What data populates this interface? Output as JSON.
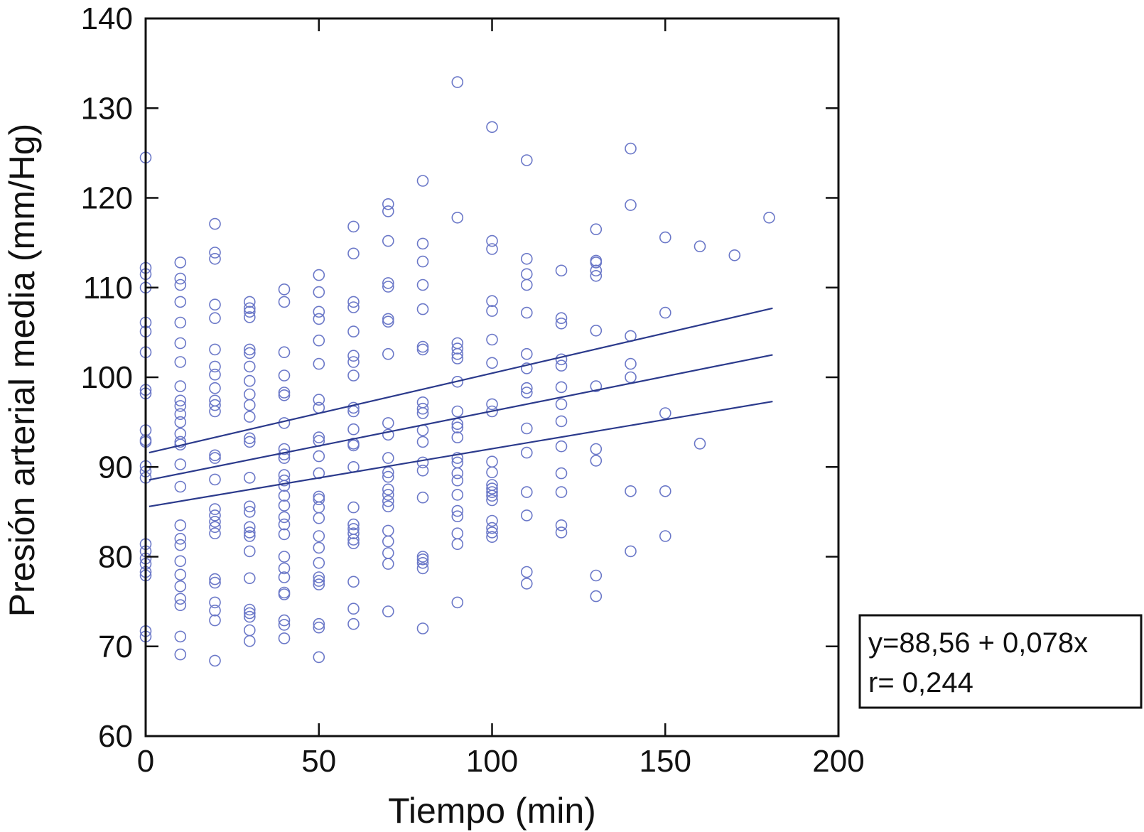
{
  "chart_data": {
    "type": "scatter",
    "xlabel": "Tiempo (min)",
    "ylabel": "Presión arterial media (mm/Hg)",
    "xlim": [
      0,
      200
    ],
    "ylim": [
      60,
      140
    ],
    "x_ticks": [
      0,
      50,
      100,
      150,
      200
    ],
    "y_ticks": [
      60,
      70,
      80,
      90,
      100,
      110,
      120,
      130,
      140
    ],
    "x_tick_labels": [
      "0",
      "50",
      "100",
      "150",
      "200"
    ],
    "y_tick_labels": [
      "60",
      "70",
      "80",
      "90",
      "100",
      "110",
      "120",
      "130",
      "140"
    ],
    "grid": false,
    "colors": {
      "points": "#6b78c8",
      "lines": "#2b3a8c",
      "axes": "#111111"
    },
    "points": [
      [
        0,
        124.5
      ],
      [
        0,
        112.2
      ],
      [
        0,
        111.5
      ],
      [
        0,
        110
      ],
      [
        0,
        106.1
      ],
      [
        0,
        105.1
      ],
      [
        0,
        102.8
      ],
      [
        0,
        98.6
      ],
      [
        0,
        98.2
      ],
      [
        0,
        94.1
      ],
      [
        0,
        93
      ],
      [
        0,
        92.8
      ],
      [
        0,
        90.1
      ],
      [
        0,
        89.5
      ],
      [
        0,
        88.8
      ],
      [
        0,
        81.4
      ],
      [
        0,
        80.6
      ],
      [
        0,
        79.8
      ],
      [
        0,
        79.2
      ],
      [
        0,
        78.3
      ],
      [
        0,
        77.9
      ],
      [
        0,
        71.7
      ],
      [
        0,
        71.1
      ],
      [
        10,
        112.8
      ],
      [
        10,
        111
      ],
      [
        10,
        110.3
      ],
      [
        10,
        108.4
      ],
      [
        10,
        106.1
      ],
      [
        10,
        103.8
      ],
      [
        10,
        101.7
      ],
      [
        10,
        99
      ],
      [
        10,
        97.4
      ],
      [
        10,
        96.8
      ],
      [
        10,
        95.9
      ],
      [
        10,
        95
      ],
      [
        10,
        93.7
      ],
      [
        10,
        92.8
      ],
      [
        10,
        92.5
      ],
      [
        10,
        90.3
      ],
      [
        10,
        87.8
      ],
      [
        10,
        83.5
      ],
      [
        10,
        82
      ],
      [
        10,
        81.3
      ],
      [
        10,
        79.5
      ],
      [
        10,
        78
      ],
      [
        10,
        76.7
      ],
      [
        10,
        75.3
      ],
      [
        10,
        74.6
      ],
      [
        10,
        71.1
      ],
      [
        10,
        69.1
      ],
      [
        20,
        117.1
      ],
      [
        20,
        113.9
      ],
      [
        20,
        113.2
      ],
      [
        20,
        108.1
      ],
      [
        20,
        106.6
      ],
      [
        20,
        103.1
      ],
      [
        20,
        101.2
      ],
      [
        20,
        100.3
      ],
      [
        20,
        98.8
      ],
      [
        20,
        97.4
      ],
      [
        20,
        96.9
      ],
      [
        20,
        96.2
      ],
      [
        20,
        91.3
      ],
      [
        20,
        91
      ],
      [
        20,
        88.6
      ],
      [
        20,
        85.3
      ],
      [
        20,
        84.6
      ],
      [
        20,
        83.9
      ],
      [
        20,
        83.3
      ],
      [
        20,
        82.6
      ],
      [
        20,
        77.5
      ],
      [
        20,
        77.1
      ],
      [
        20,
        74.9
      ],
      [
        20,
        74
      ],
      [
        20,
        72.9
      ],
      [
        20,
        68.4
      ],
      [
        30,
        108.4
      ],
      [
        30,
        107.7
      ],
      [
        30,
        107.3
      ],
      [
        30,
        106.7
      ],
      [
        30,
        103.1
      ],
      [
        30,
        102.7
      ],
      [
        30,
        101.2
      ],
      [
        30,
        99.6
      ],
      [
        30,
        98.1
      ],
      [
        30,
        96.9
      ],
      [
        30,
        95.6
      ],
      [
        30,
        93.2
      ],
      [
        30,
        92.8
      ],
      [
        30,
        88.8
      ],
      [
        30,
        85.6
      ],
      [
        30,
        85
      ],
      [
        30,
        83.3
      ],
      [
        30,
        82.7
      ],
      [
        30,
        82.3
      ],
      [
        30,
        80.6
      ],
      [
        30,
        77.6
      ],
      [
        30,
        74.1
      ],
      [
        30,
        73.7
      ],
      [
        30,
        73.3
      ],
      [
        30,
        71.8
      ],
      [
        30,
        70.6
      ],
      [
        40,
        109.8
      ],
      [
        40,
        108.4
      ],
      [
        40,
        102.8
      ],
      [
        40,
        100.2
      ],
      [
        40,
        98.3
      ],
      [
        40,
        98
      ],
      [
        40,
        94.9
      ],
      [
        40,
        92
      ],
      [
        40,
        91.4
      ],
      [
        40,
        91
      ],
      [
        40,
        89.1
      ],
      [
        40,
        88.5
      ],
      [
        40,
        87.9
      ],
      [
        40,
        86.8
      ],
      [
        40,
        85.7
      ],
      [
        40,
        84.4
      ],
      [
        40,
        83.6
      ],
      [
        40,
        82.5
      ],
      [
        40,
        80
      ],
      [
        40,
        78.7
      ],
      [
        40,
        77.7
      ],
      [
        40,
        76
      ],
      [
        40,
        75.8
      ],
      [
        40,
        72.9
      ],
      [
        40,
        72.4
      ],
      [
        40,
        70.9
      ],
      [
        50,
        111.4
      ],
      [
        50,
        109.5
      ],
      [
        50,
        107.3
      ],
      [
        50,
        106.5
      ],
      [
        50,
        104.1
      ],
      [
        50,
        101.5
      ],
      [
        50,
        97.5
      ],
      [
        50,
        96.6
      ],
      [
        50,
        93.3
      ],
      [
        50,
        92.9
      ],
      [
        50,
        91.2
      ],
      [
        50,
        89.3
      ],
      [
        50,
        86.7
      ],
      [
        50,
        86.4
      ],
      [
        50,
        85.5
      ],
      [
        50,
        84.3
      ],
      [
        50,
        82.3
      ],
      [
        50,
        81
      ],
      [
        50,
        79.3
      ],
      [
        50,
        77.7
      ],
      [
        50,
        77.3
      ],
      [
        50,
        76.9
      ],
      [
        50,
        72.5
      ],
      [
        50,
        72.1
      ],
      [
        50,
        68.8
      ],
      [
        60,
        116.8
      ],
      [
        60,
        113.8
      ],
      [
        60,
        108.4
      ],
      [
        60,
        107.8
      ],
      [
        60,
        105.1
      ],
      [
        60,
        102.4
      ],
      [
        60,
        101.7
      ],
      [
        60,
        100.2
      ],
      [
        60,
        96.6
      ],
      [
        60,
        96.2
      ],
      [
        60,
        94.2
      ],
      [
        60,
        92.6
      ],
      [
        60,
        92.4
      ],
      [
        60,
        90
      ],
      [
        60,
        85.5
      ],
      [
        60,
        83.6
      ],
      [
        60,
        83.1
      ],
      [
        60,
        82.6
      ],
      [
        60,
        81.9
      ],
      [
        60,
        81.5
      ],
      [
        60,
        77.2
      ],
      [
        60,
        74.2
      ],
      [
        60,
        72.5
      ],
      [
        70,
        119.3
      ],
      [
        70,
        118.5
      ],
      [
        70,
        115.2
      ],
      [
        70,
        110.5
      ],
      [
        70,
        110.1
      ],
      [
        70,
        106.5
      ],
      [
        70,
        106.2
      ],
      [
        70,
        102.6
      ],
      [
        70,
        94.9
      ],
      [
        70,
        93.6
      ],
      [
        70,
        91
      ],
      [
        70,
        89.4
      ],
      [
        70,
        88.9
      ],
      [
        70,
        87.5
      ],
      [
        70,
        86.9
      ],
      [
        70,
        86.2
      ],
      [
        70,
        85.6
      ],
      [
        70,
        82.9
      ],
      [
        70,
        81.7
      ],
      [
        70,
        80.4
      ],
      [
        70,
        79.2
      ],
      [
        70,
        73.9
      ],
      [
        80,
        121.9
      ],
      [
        80,
        114.9
      ],
      [
        80,
        112.9
      ],
      [
        80,
        110.3
      ],
      [
        80,
        107.6
      ],
      [
        80,
        103.4
      ],
      [
        80,
        103.1
      ],
      [
        80,
        97.2
      ],
      [
        80,
        96.5
      ],
      [
        80,
        96
      ],
      [
        80,
        94.1
      ],
      [
        80,
        92.8
      ],
      [
        80,
        90.5
      ],
      [
        80,
        89.6
      ],
      [
        80,
        86.6
      ],
      [
        80,
        80
      ],
      [
        80,
        79.7
      ],
      [
        80,
        79.3
      ],
      [
        80,
        78.7
      ],
      [
        80,
        72
      ],
      [
        90,
        132.9
      ],
      [
        90,
        117.8
      ],
      [
        90,
        103.8
      ],
      [
        90,
        103.2
      ],
      [
        90,
        102.6
      ],
      [
        90,
        102.1
      ],
      [
        90,
        99.5
      ],
      [
        90,
        96.2
      ],
      [
        90,
        94.8
      ],
      [
        90,
        94.4
      ],
      [
        90,
        93.3
      ],
      [
        90,
        91
      ],
      [
        90,
        90.5
      ],
      [
        90,
        89.3
      ],
      [
        90,
        88.5
      ],
      [
        90,
        86.9
      ],
      [
        90,
        85.1
      ],
      [
        90,
        84.5
      ],
      [
        90,
        82.6
      ],
      [
        90,
        81.4
      ],
      [
        90,
        74.9
      ],
      [
        100,
        127.9
      ],
      [
        100,
        115.2
      ],
      [
        100,
        114.3
      ],
      [
        100,
        108.5
      ],
      [
        100,
        107.4
      ],
      [
        100,
        104.2
      ],
      [
        100,
        101.6
      ],
      [
        100,
        97
      ],
      [
        100,
        96.2
      ],
      [
        100,
        90.6
      ],
      [
        100,
        89.4
      ],
      [
        100,
        88
      ],
      [
        100,
        87.6
      ],
      [
        100,
        87.2
      ],
      [
        100,
        86.8
      ],
      [
        100,
        86.3
      ],
      [
        100,
        84
      ],
      [
        100,
        83.2
      ],
      [
        100,
        82.7
      ],
      [
        100,
        82.2
      ],
      [
        110,
        124.2
      ],
      [
        110,
        113.2
      ],
      [
        110,
        111.5
      ],
      [
        110,
        110.3
      ],
      [
        110,
        107.2
      ],
      [
        110,
        102.6
      ],
      [
        110,
        101
      ],
      [
        110,
        98.8
      ],
      [
        110,
        98.3
      ],
      [
        110,
        94.3
      ],
      [
        110,
        91.6
      ],
      [
        110,
        87.2
      ],
      [
        110,
        84.6
      ],
      [
        110,
        78.3
      ],
      [
        110,
        77
      ],
      [
        120,
        111.9
      ],
      [
        120,
        106.6
      ],
      [
        120,
        106
      ],
      [
        120,
        102
      ],
      [
        120,
        101.3
      ],
      [
        120,
        98.9
      ],
      [
        120,
        97
      ],
      [
        120,
        95.1
      ],
      [
        120,
        92.3
      ],
      [
        120,
        89.3
      ],
      [
        120,
        87.2
      ],
      [
        120,
        83.5
      ],
      [
        120,
        82.7
      ],
      [
        130,
        116.5
      ],
      [
        130,
        113
      ],
      [
        130,
        112.8
      ],
      [
        130,
        111.9
      ],
      [
        130,
        111.3
      ],
      [
        130,
        105.2
      ],
      [
        130,
        99
      ],
      [
        130,
        92
      ],
      [
        130,
        90.7
      ],
      [
        130,
        77.9
      ],
      [
        130,
        75.6
      ],
      [
        140,
        125.5
      ],
      [
        140,
        119.2
      ],
      [
        140,
        104.6
      ],
      [
        140,
        101.5
      ],
      [
        140,
        100
      ],
      [
        140,
        87.3
      ],
      [
        140,
        80.6
      ],
      [
        150,
        115.6
      ],
      [
        150,
        107.2
      ],
      [
        150,
        96
      ],
      [
        150,
        87.3
      ],
      [
        150,
        82.3
      ],
      [
        160,
        114.6
      ],
      [
        160,
        92.6
      ],
      [
        170,
        113.6
      ],
      [
        180,
        117.8
      ]
    ],
    "regression": {
      "fit": [
        [
          1,
          88.56
        ],
        [
          181,
          102.5
        ]
      ],
      "upper": [
        [
          1,
          91.6
        ],
        [
          181,
          107.7
        ]
      ],
      "lower": [
        [
          1,
          85.6
        ],
        [
          181,
          97.3
        ]
      ]
    },
    "annotation": {
      "line1": "y=88,56 + 0,078x",
      "line2": "r= 0,244"
    }
  }
}
